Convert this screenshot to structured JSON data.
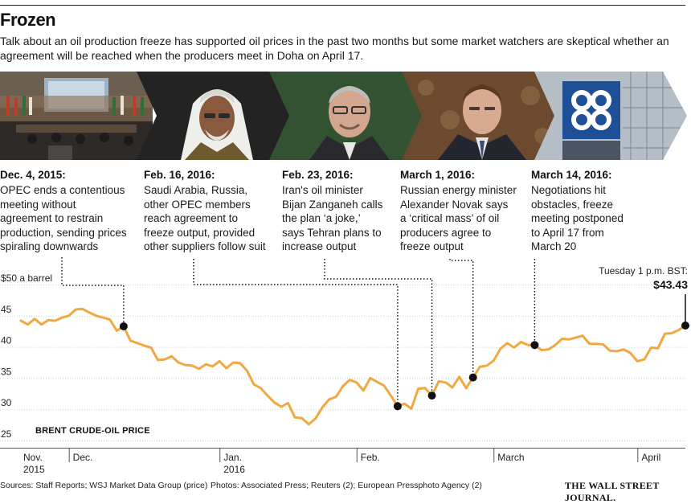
{
  "header": {
    "title": "Frozen",
    "subtitle": "Talk about an oil production freeze has supported oil prices in the past two months but some market watchers are skeptical whether an agreement will be reached when the producers meet in Doha on April 17."
  },
  "photos": [
    {
      "name": "opec-meeting-hall-photo",
      "description": "opec-meeting-room"
    },
    {
      "name": "saudi-minister-photo",
      "description": "man-in-headdress"
    },
    {
      "name": "iran-minister-photo",
      "description": "man-with-glasses"
    },
    {
      "name": "russia-minister-photo",
      "description": "man-in-suit"
    },
    {
      "name": "opec-logo-photo",
      "description": "opec-logo-sign"
    }
  ],
  "events": [
    {
      "date": "Dec. 4, 2015:",
      "lines": [
        "OPEC ends a contentious",
        "meeting without",
        "agreement to restrain",
        "production, sending prices",
        "spiraling downwards"
      ]
    },
    {
      "date": "Feb. 16, 2016:",
      "lines": [
        "Saudi Arabia, Russia,",
        "other OPEC members",
        "reach agreement to",
        "freeze output, provided",
        "other suppliers follow suit"
      ]
    },
    {
      "date": "Feb. 23, 2016:",
      "lines": [
        "Iran's oil minister",
        "Bijan Zanganeh calls",
        "the plan ‘a joke,’",
        "says Tehran plans to",
        "increase output"
      ]
    },
    {
      "date": "March 1, 2016:",
      "lines": [
        "Russian energy minister",
        "Alexander Novak says",
        "a ‘critical mass’ of oil",
        "producers agree to",
        "freeze output"
      ]
    },
    {
      "date": "March 14, 2016:",
      "lines": [
        "Negotiations hit",
        "obstacles, freeze",
        "meeting postponed",
        "to April 17 from",
        "March 20"
      ]
    }
  ],
  "latest": {
    "time": "Tuesday 1 p.m. BST:",
    "price": "$43.43"
  },
  "chart_data": {
    "type": "line",
    "title": "BRENT CRUDE-OIL PRICE",
    "ylabel": "$50 a barrel",
    "ylim": [
      25,
      50
    ],
    "yticks": [
      25,
      30,
      35,
      40,
      45,
      50
    ],
    "ytick_labels": [
      "25",
      "30",
      "35",
      "40",
      "45",
      "$50 a barrel"
    ],
    "xlabels": [
      {
        "label": "Nov.",
        "sub": "2015",
        "index": 0
      },
      {
        "label": "Dec.",
        "sub": "",
        "index": 7
      },
      {
        "label": "Jan.",
        "sub": "2016",
        "index": 29
      },
      {
        "label": "Feb.",
        "sub": "",
        "index": 49
      },
      {
        "label": "March",
        "sub": "",
        "index": 69
      },
      {
        "label": "April",
        "sub": "",
        "index": 90
      }
    ],
    "values": [
      44.2,
      43.6,
      44.5,
      43.6,
      44.3,
      44.2,
      44.7,
      45.0,
      46.0,
      46.1,
      45.5,
      45.0,
      44.7,
      44.4,
      42.6,
      43.3,
      41.0,
      40.6,
      40.2,
      39.9,
      37.9,
      38.0,
      38.5,
      37.5,
      37.1,
      37.0,
      36.5,
      37.2,
      36.9,
      37.7,
      36.6,
      37.5,
      37.4,
      36.2,
      34.0,
      33.4,
      32.2,
      31.1,
      30.4,
      31.0,
      28.7,
      28.6,
      27.6,
      28.5,
      30.3,
      31.6,
      32.0,
      33.7,
      34.7,
      34.3,
      33.0,
      35.0,
      34.4,
      33.8,
      32.2,
      30.5,
      30.9,
      30.1,
      33.3,
      33.4,
      32.2,
      34.5,
      34.3,
      33.5,
      35.2,
      33.4,
      35.1,
      36.8,
      37.0,
      37.8,
      39.7,
      40.6,
      39.9,
      40.8,
      40.3,
      40.3,
      39.5,
      39.6,
      40.3,
      41.3,
      41.2,
      41.5,
      41.8,
      40.5,
      40.5,
      40.4,
      39.4,
      39.3,
      39.6,
      39.0,
      37.7,
      38.0,
      39.9,
      39.8,
      42.1,
      42.2,
      42.7,
      43.43
    ],
    "events": [
      {
        "label": "Dec. 4, 2015",
        "index": 15
      },
      {
        "label": "Feb. 16, 2016",
        "index": 55
      },
      {
        "label": "Feb. 23, 2016",
        "index": 60
      },
      {
        "label": "March 1, 2016",
        "index": 66
      },
      {
        "label": "March 14, 2016",
        "index": 75
      },
      {
        "label": "Tuesday 1 p.m. BST",
        "index": 97
      }
    ],
    "line_color": "#f0a842"
  },
  "footer": {
    "sources": "Sources: Staff Reports; WSJ Market Data Group (price)",
    "photos": "Photos: Associated Press; Reuters (2); European Pressphoto Agency (2)",
    "publisher": "THE WALL STREET JOURNAL."
  }
}
